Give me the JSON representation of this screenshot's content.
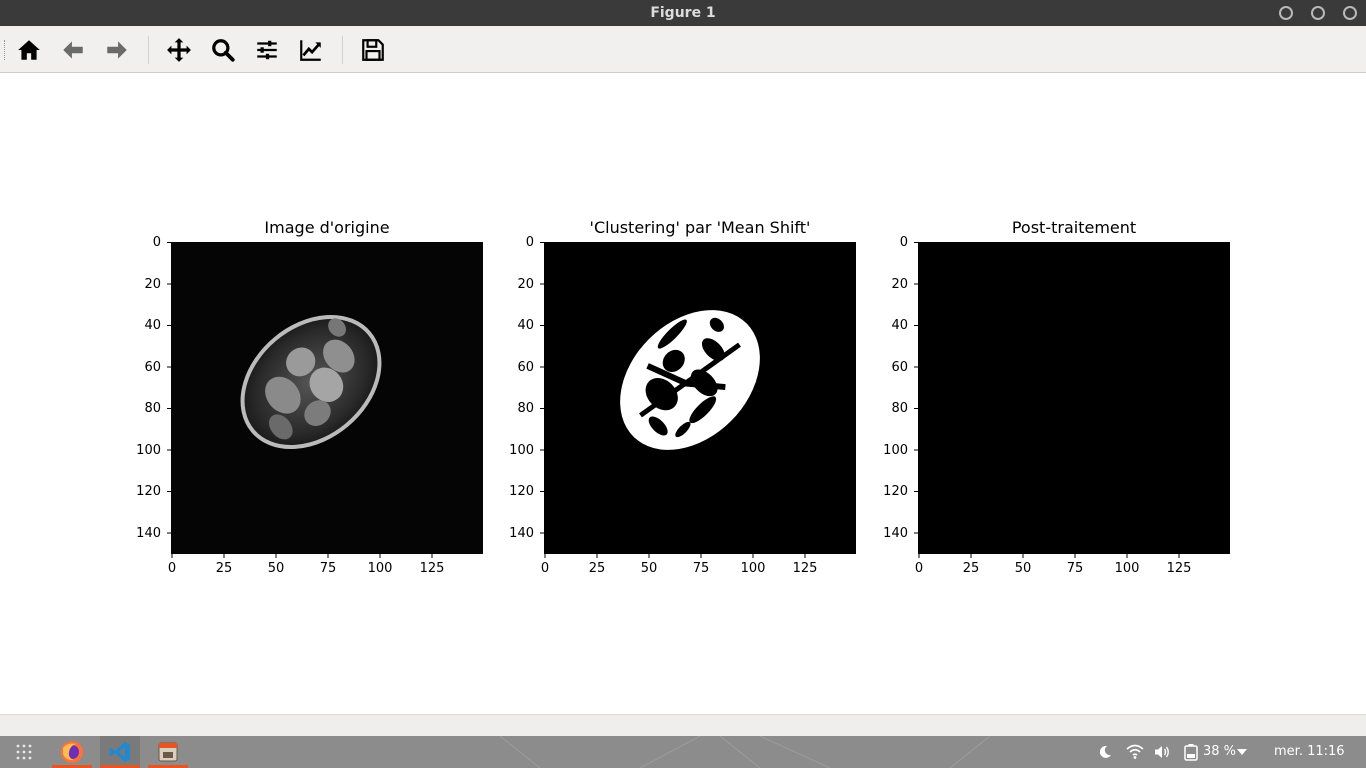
{
  "window": {
    "title": "Figure 1"
  },
  "toolbar": {
    "buttons": [
      {
        "name": "home",
        "icon": "home-icon"
      },
      {
        "name": "back",
        "icon": "arrow-left-icon"
      },
      {
        "name": "forward",
        "icon": "arrow-right-icon"
      },
      {
        "name": "pan",
        "icon": "move-icon"
      },
      {
        "name": "zoom",
        "icon": "magnifier-icon"
      },
      {
        "name": "configure-subplots",
        "icon": "sliders-icon"
      },
      {
        "name": "edit-axis",
        "icon": "line-chart-icon"
      },
      {
        "name": "save",
        "icon": "floppy-disk-icon"
      }
    ]
  },
  "figure": {
    "subplots": [
      {
        "title": "Image d'origine",
        "x_ticks": [
          "0",
          "25",
          "50",
          "75",
          "100",
          "125"
        ],
        "y_ticks": [
          "0",
          "20",
          "40",
          "60",
          "80",
          "100",
          "120",
          "140"
        ]
      },
      {
        "title": "'Clustering' par 'Mean Shift'",
        "x_ticks": [
          "0",
          "25",
          "50",
          "75",
          "100",
          "125"
        ],
        "y_ticks": [
          "0",
          "20",
          "40",
          "60",
          "80",
          "100",
          "120",
          "140"
        ]
      },
      {
        "title": "Post-traitement",
        "x_ticks": [
          "0",
          "25",
          "50",
          "75",
          "100",
          "125"
        ],
        "y_ticks": [
          "0",
          "20",
          "40",
          "60",
          "80",
          "100",
          "120",
          "140"
        ]
      }
    ],
    "image_size": [
      150,
      150
    ],
    "colors": {
      "image_background": "#000000",
      "mask_foreground": "#ffffff"
    }
  },
  "taskbar": {
    "apps": [
      {
        "name": "apps-grid",
        "icon": "grid-icon"
      },
      {
        "name": "firefox",
        "icon": "firefox-icon"
      },
      {
        "name": "vscode",
        "icon": "vscode-icon"
      },
      {
        "name": "figure-window",
        "icon": "window-icon"
      }
    ],
    "battery": "38 %",
    "clock": "mer. 11:16"
  }
}
